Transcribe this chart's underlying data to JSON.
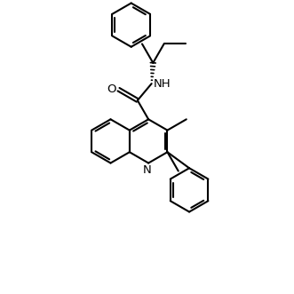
{
  "background": "#ffffff",
  "line_color": "#000000",
  "lw": 1.5,
  "lw_inner": 1.3,
  "figsize": [
    3.31,
    3.31
  ],
  "dpi": 100,
  "xlim": [
    0,
    10
  ],
  "ylim": [
    0,
    10
  ],
  "b": 0.75
}
